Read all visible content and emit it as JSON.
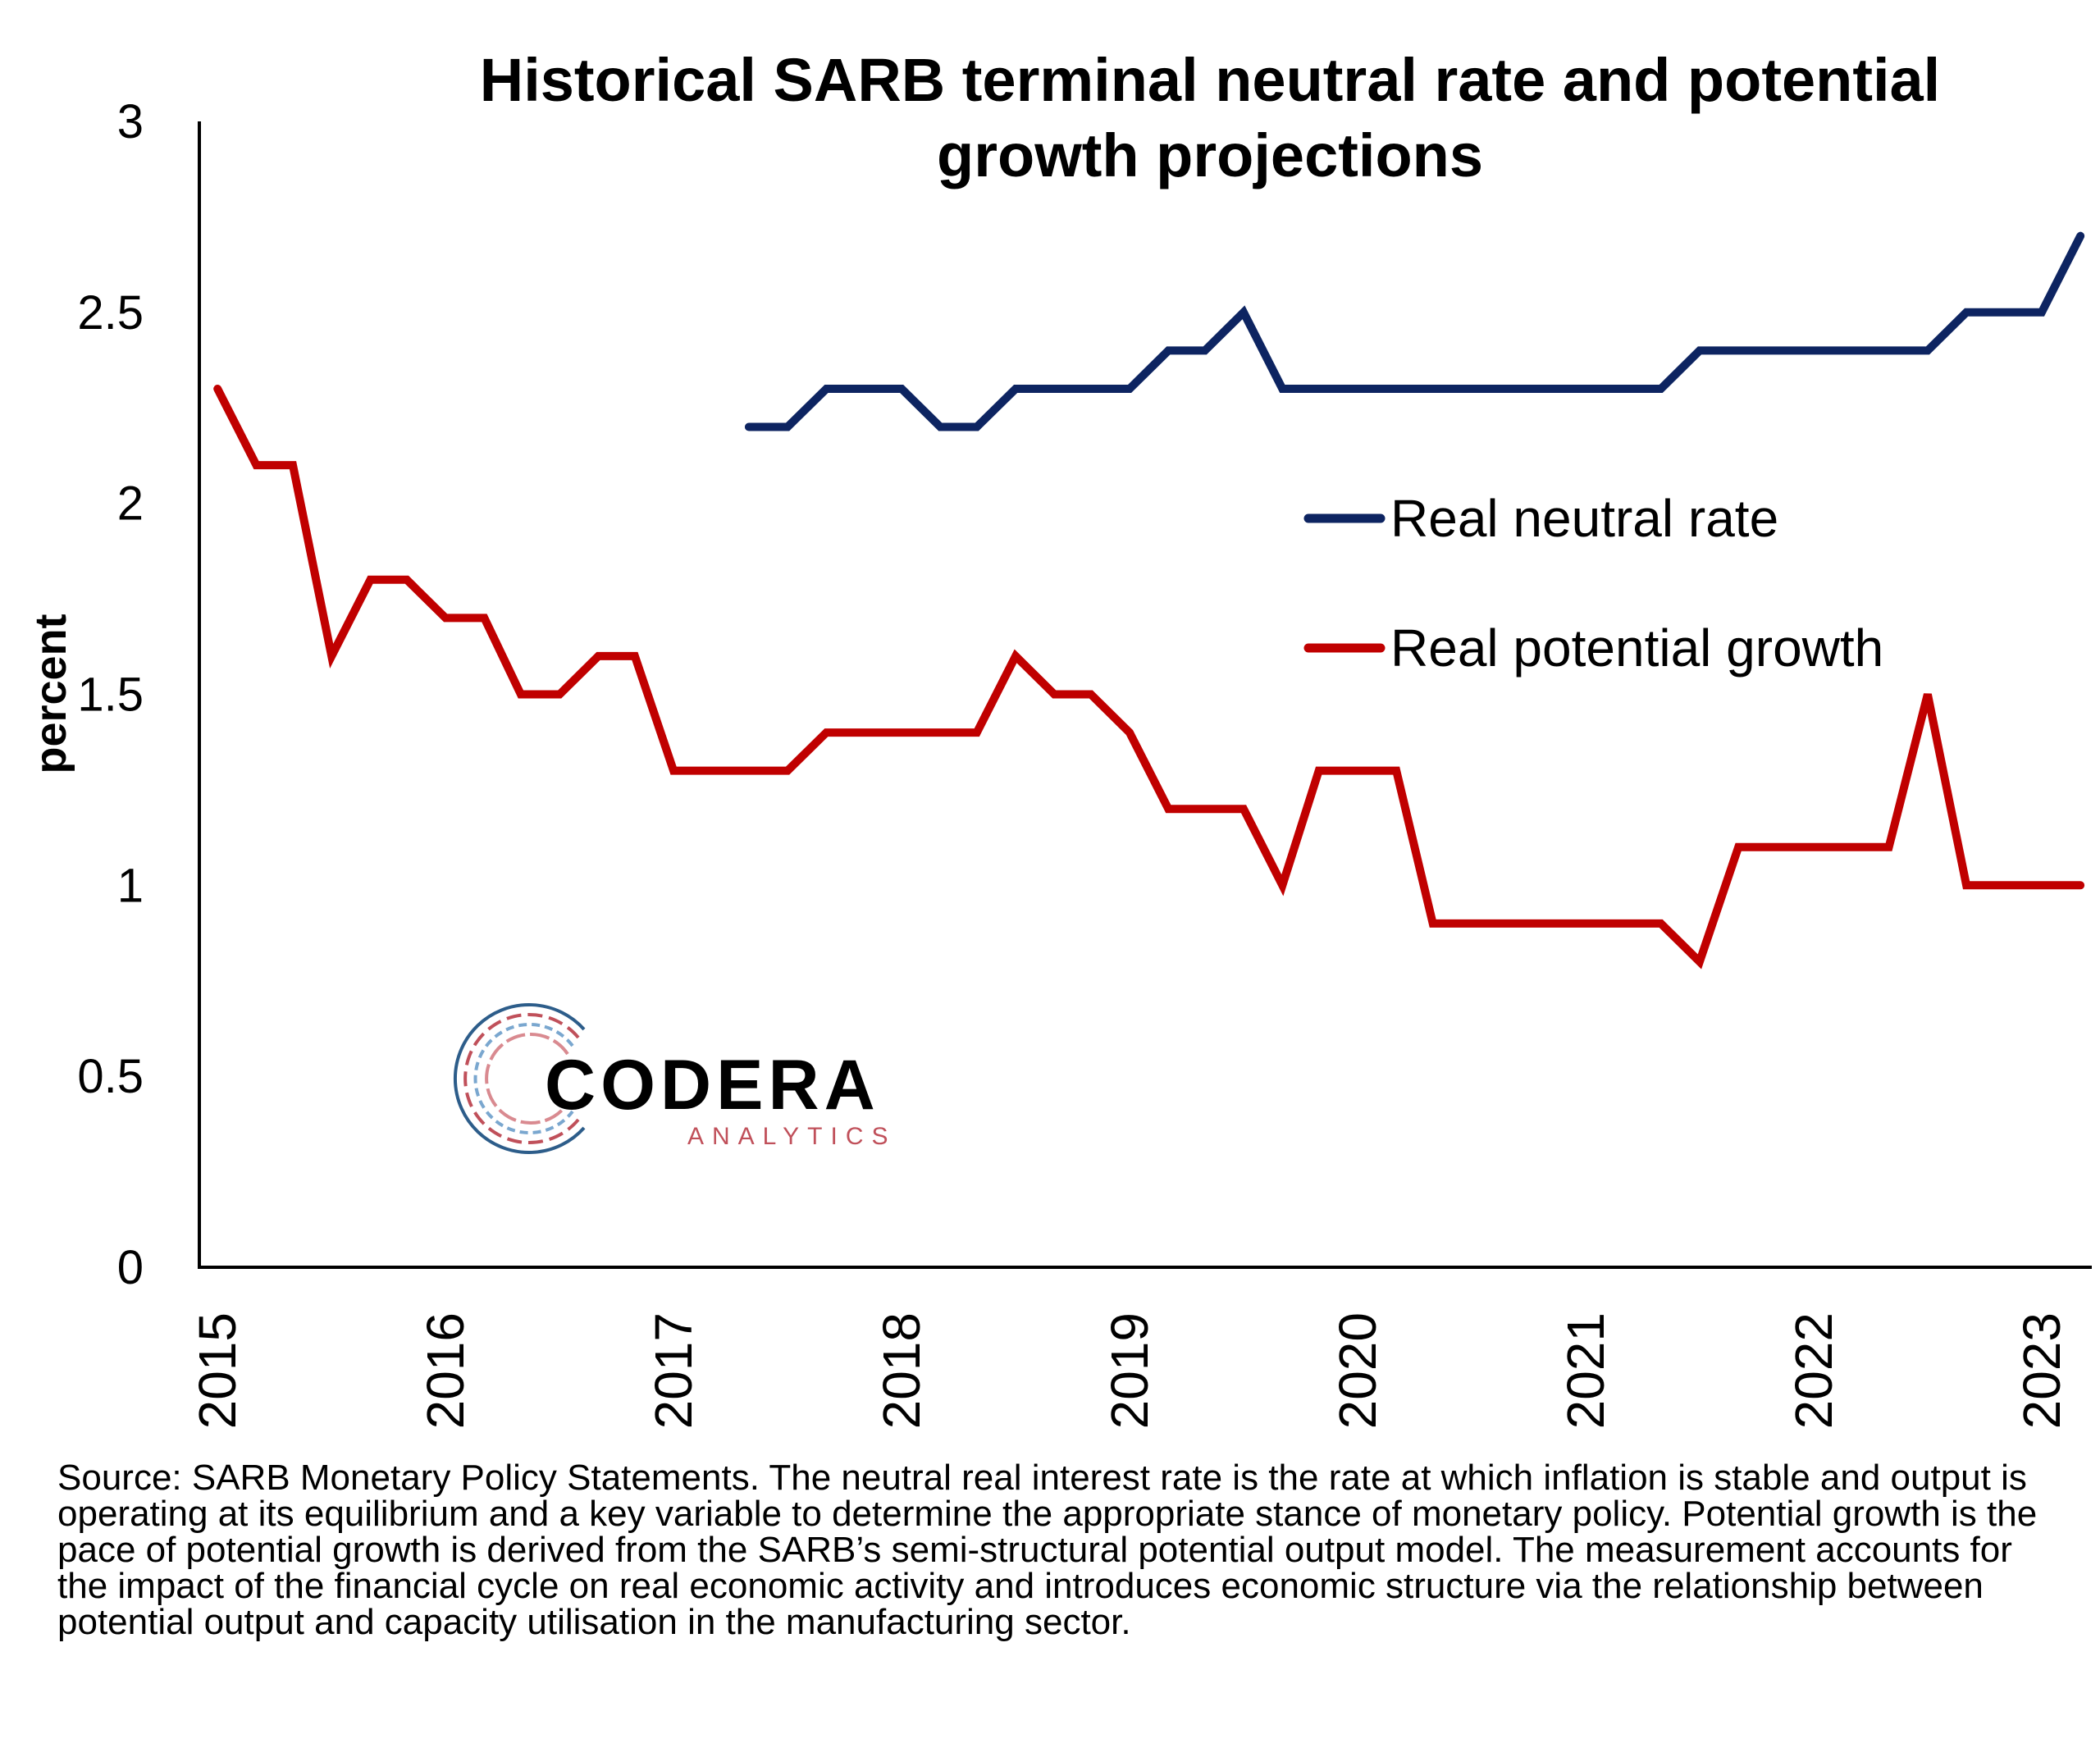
{
  "chart_data": {
    "type": "line",
    "title": "Historical SARB terminal neutral rate and potential growth projections",
    "ylabel": "percent",
    "xlabel": "",
    "ylim": [
      0,
      3
    ],
    "yticks": [
      "0",
      "0.5",
      "1",
      "1.5",
      "2",
      "2.5",
      "3"
    ],
    "ytick_values": [
      0,
      0.5,
      1,
      1.5,
      2,
      2.5,
      3
    ],
    "xticks": [
      "2015",
      "2016",
      "2017",
      "2018",
      "2019",
      "2020",
      "2021",
      "2022",
      "2023"
    ],
    "xtick_values": [
      2015,
      2016,
      2017,
      2018,
      2019,
      2020,
      2021,
      2022,
      2023
    ],
    "xlim": [
      2014.92,
      2023.22
    ],
    "grid": false,
    "legend_position": "right",
    "series": [
      {
        "name": "Real neutral rate",
        "color": "#0d2461",
        "x": [
          2017.33,
          2017.5,
          2017.67,
          2017.83,
          2018.0,
          2018.17,
          2018.33,
          2018.5,
          2018.67,
          2018.83,
          2019.0,
          2019.17,
          2019.33,
          2019.5,
          2019.67,
          2019.83,
          2020.0,
          2020.17,
          2020.33,
          2020.5,
          2020.67,
          2020.83,
          2021.0,
          2021.17,
          2021.33,
          2021.5,
          2021.67,
          2021.83,
          2022.0,
          2022.17,
          2022.33,
          2022.5,
          2022.67,
          2022.83,
          2023.0,
          2023.17
        ],
        "values": [
          2.2,
          2.2,
          2.3,
          2.3,
          2.3,
          2.2,
          2.2,
          2.3,
          2.3,
          2.3,
          2.3,
          2.4,
          2.4,
          2.5,
          2.3,
          2.3,
          2.3,
          2.3,
          2.3,
          2.3,
          2.3,
          2.3,
          2.3,
          2.3,
          2.3,
          2.4,
          2.4,
          2.4,
          2.4,
          2.4,
          2.4,
          2.4,
          2.5,
          2.5,
          2.5,
          2.7
        ]
      },
      {
        "name": "Real potential growth",
        "color": "#c00000",
        "x": [
          2015.0,
          2015.17,
          2015.33,
          2015.5,
          2015.67,
          2015.83,
          2016.0,
          2016.17,
          2016.33,
          2016.5,
          2016.67,
          2016.83,
          2017.0,
          2017.17,
          2017.33,
          2017.5,
          2017.67,
          2017.83,
          2018.0,
          2018.17,
          2018.33,
          2018.5,
          2018.67,
          2018.83,
          2019.0,
          2019.17,
          2019.33,
          2019.5,
          2019.67,
          2019.83,
          2020.0,
          2020.17,
          2020.33,
          2020.5,
          2020.67,
          2020.83,
          2021.0,
          2021.17,
          2021.33,
          2021.5,
          2021.67,
          2021.83,
          2022.0,
          2022.17,
          2022.33,
          2022.5,
          2022.67,
          2022.83,
          2023.0,
          2023.17
        ],
        "values": [
          2.3,
          2.1,
          2.1,
          1.6,
          1.8,
          1.8,
          1.7,
          1.7,
          1.5,
          1.5,
          1.6,
          1.6,
          1.3,
          1.3,
          1.3,
          1.3,
          1.4,
          1.4,
          1.4,
          1.4,
          1.4,
          1.6,
          1.5,
          1.5,
          1.4,
          1.2,
          1.2,
          1.2,
          1.0,
          1.3,
          1.3,
          1.3,
          0.9,
          0.9,
          0.9,
          0.9,
          0.9,
          0.9,
          0.9,
          0.8,
          1.1,
          1.1,
          1.1,
          1.1,
          1.1,
          1.5,
          1.0,
          1.0,
          1.0,
          1.0
        ]
      }
    ]
  },
  "logo": {
    "name": "CODERA",
    "sub": "ANALYTICS"
  },
  "source_note": "Source: SARB Monetary Policy Statements. The neutral real interest rate is the rate at which inflation is stable and output is operating at its equilibrium and a key variable to determine the appropriate stance of monetary policy. Potential growth is the pace of potential growth is derived from the SARB’s semi-structural potential output model. The measurement accounts for the impact of the financial cycle on real economic activity and introduces economic structure via the relationship between potential output and capacity utilisation in the manufacturing sector."
}
